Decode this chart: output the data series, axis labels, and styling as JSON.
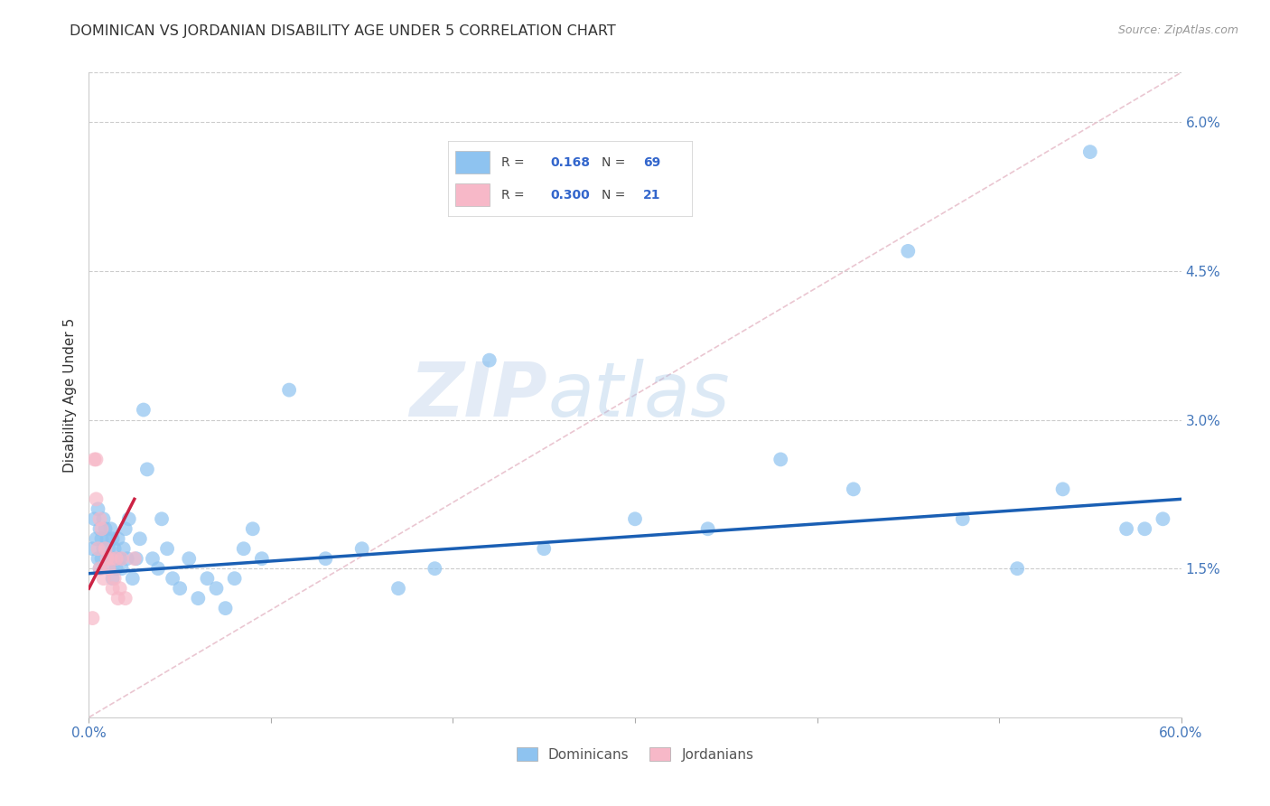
{
  "title": "DOMINICAN VS JORDANIAN DISABILITY AGE UNDER 5 CORRELATION CHART",
  "source": "Source: ZipAtlas.com",
  "ylabel": "Disability Age Under 5",
  "xlim": [
    0.0,
    0.6
  ],
  "ylim": [
    0.0,
    0.065
  ],
  "yticks_right": [
    0.015,
    0.03,
    0.045,
    0.06
  ],
  "yticklabels_right": [
    "1.5%",
    "3.0%",
    "4.5%",
    "6.0%"
  ],
  "dominican_color": "#8ec3f0",
  "jordanian_color": "#f7b8c8",
  "trend_line_dominican_color": "#1a5fb4",
  "trend_line_jordanian_color": "#cc2244",
  "diagonal_color": "#e8c0cc",
  "watermark_zip": "ZIP",
  "watermark_atlas": "atlas",
  "legend_dominicans": "Dominicans",
  "legend_jordanians": "Jordanians",
  "dominican_x": [
    0.002,
    0.003,
    0.004,
    0.005,
    0.005,
    0.006,
    0.006,
    0.007,
    0.007,
    0.008,
    0.008,
    0.009,
    0.01,
    0.01,
    0.011,
    0.011,
    0.012,
    0.012,
    0.013,
    0.013,
    0.014,
    0.014,
    0.015,
    0.016,
    0.017,
    0.018,
    0.019,
    0.02,
    0.021,
    0.022,
    0.024,
    0.026,
    0.028,
    0.03,
    0.032,
    0.035,
    0.038,
    0.04,
    0.043,
    0.046,
    0.05,
    0.055,
    0.06,
    0.065,
    0.07,
    0.075,
    0.08,
    0.085,
    0.09,
    0.095,
    0.11,
    0.13,
    0.15,
    0.17,
    0.19,
    0.22,
    0.25,
    0.3,
    0.34,
    0.38,
    0.42,
    0.45,
    0.48,
    0.51,
    0.535,
    0.55,
    0.57,
    0.58,
    0.59
  ],
  "dominican_y": [
    0.017,
    0.02,
    0.018,
    0.021,
    0.016,
    0.019,
    0.015,
    0.018,
    0.016,
    0.02,
    0.017,
    0.019,
    0.016,
    0.018,
    0.017,
    0.015,
    0.019,
    0.016,
    0.018,
    0.014,
    0.017,
    0.016,
    0.015,
    0.018,
    0.016,
    0.015,
    0.017,
    0.019,
    0.016,
    0.02,
    0.014,
    0.016,
    0.018,
    0.031,
    0.025,
    0.016,
    0.015,
    0.02,
    0.017,
    0.014,
    0.013,
    0.016,
    0.012,
    0.014,
    0.013,
    0.011,
    0.014,
    0.017,
    0.019,
    0.016,
    0.033,
    0.016,
    0.017,
    0.013,
    0.015,
    0.036,
    0.017,
    0.02,
    0.019,
    0.026,
    0.023,
    0.047,
    0.02,
    0.015,
    0.023,
    0.057,
    0.019,
    0.019,
    0.02
  ],
  "jordanian_x": [
    0.002,
    0.003,
    0.004,
    0.004,
    0.005,
    0.006,
    0.006,
    0.007,
    0.008,
    0.009,
    0.01,
    0.011,
    0.012,
    0.013,
    0.014,
    0.015,
    0.016,
    0.017,
    0.018,
    0.02,
    0.025
  ],
  "jordanian_y": [
    0.01,
    0.026,
    0.026,
    0.022,
    0.017,
    0.02,
    0.015,
    0.019,
    0.014,
    0.017,
    0.016,
    0.015,
    0.016,
    0.013,
    0.014,
    0.016,
    0.012,
    0.013,
    0.016,
    0.012,
    0.016
  ],
  "dom_trend_x0": 0.0,
  "dom_trend_x1": 0.6,
  "dom_trend_y0": 0.0145,
  "dom_trend_y1": 0.022,
  "jor_trend_x0": 0.0,
  "jor_trend_x1": 0.025,
  "jor_trend_y0": 0.013,
  "jor_trend_y1": 0.022
}
